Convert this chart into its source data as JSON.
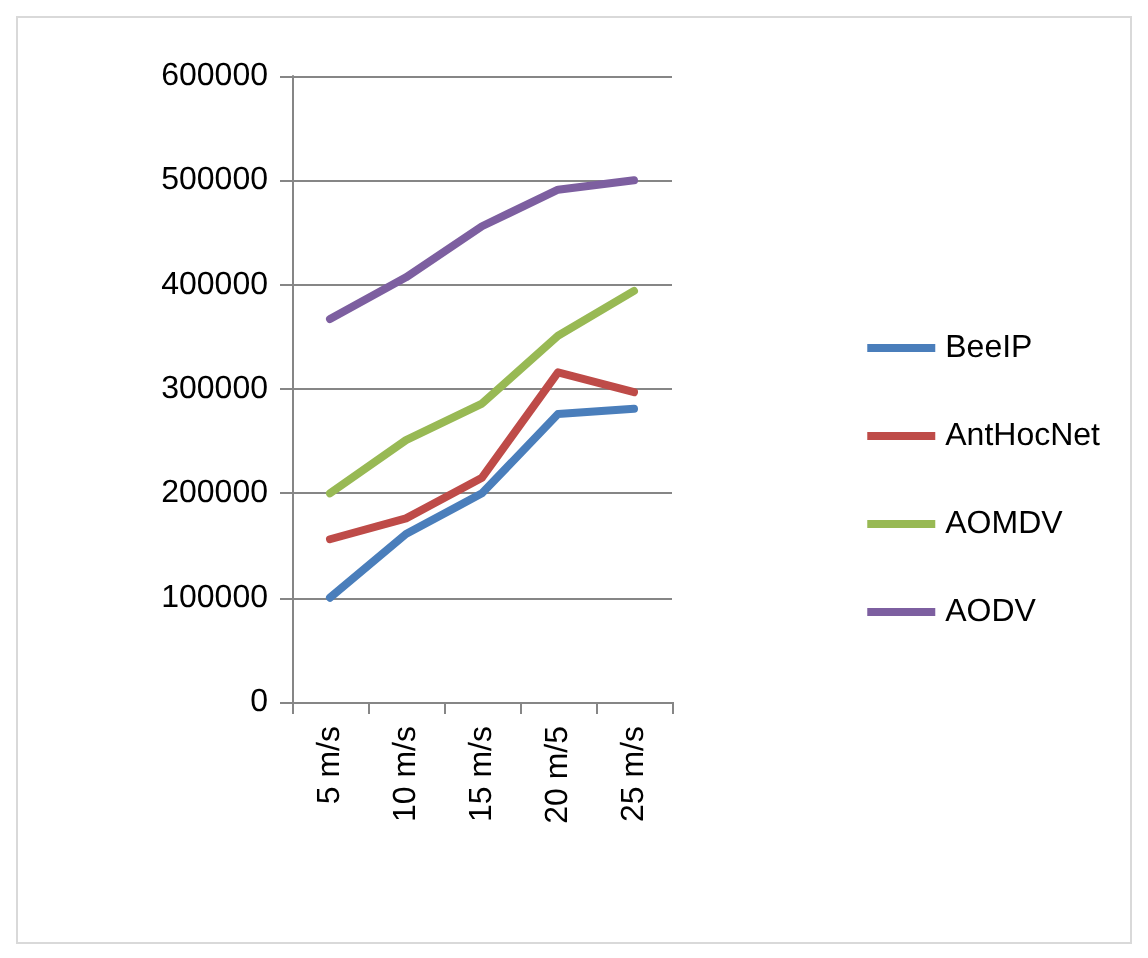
{
  "chart_data": {
    "type": "line",
    "categories": [
      "5 m/s",
      "10 m/s",
      "15 m/s",
      "20 m/5",
      "25 m/s"
    ],
    "series": [
      {
        "name": "BeeIP",
        "color": "#4a7ebb",
        "values": [
          100000,
          161000,
          200000,
          276000,
          281000
        ]
      },
      {
        "name": "AntHocNet",
        "color": "#be4b48",
        "values": [
          156000,
          176000,
          215000,
          316000,
          297000
        ]
      },
      {
        "name": "AOMDV",
        "color": "#98b954",
        "values": [
          200000,
          251000,
          286000,
          351000,
          394000
        ]
      },
      {
        "name": "AODV",
        "color": "#7d5fa0",
        "values": [
          367000,
          407000,
          456000,
          491000,
          500000
        ]
      }
    ],
    "ylim": [
      0,
      600000
    ],
    "yticks": [
      0,
      100000,
      200000,
      300000,
      400000,
      500000,
      600000
    ],
    "grid": "y",
    "legend": "right",
    "marker": "none",
    "line_style": "solid"
  }
}
